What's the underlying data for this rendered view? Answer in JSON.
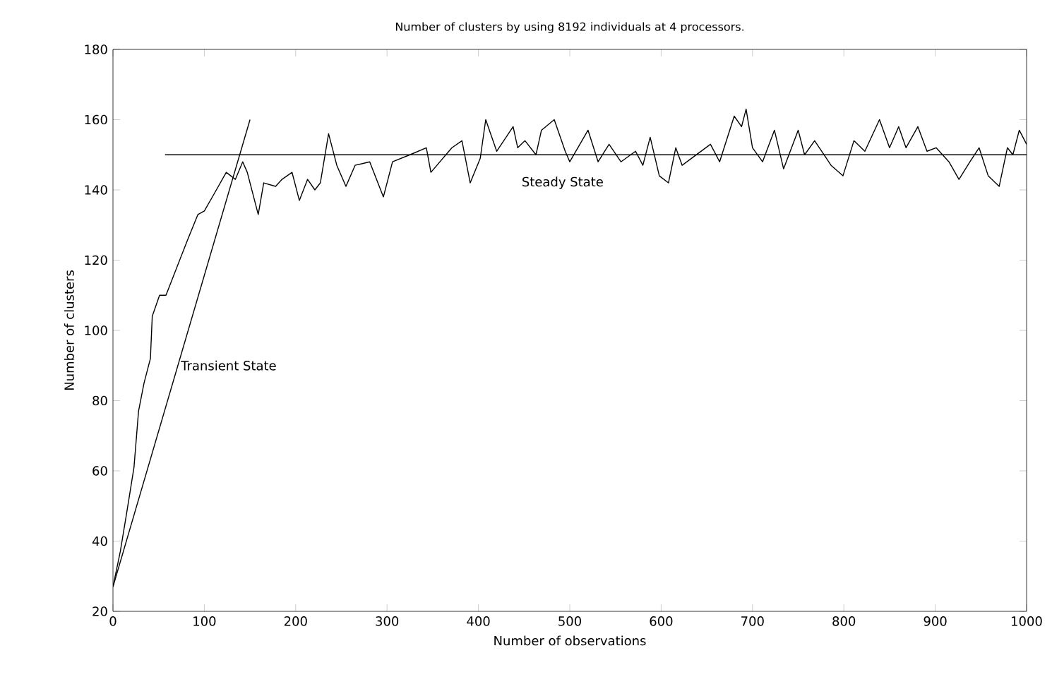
{
  "chart_data": {
    "type": "line",
    "title": "Number of clusters by using 8192 individuals at 4 processors.",
    "xlabel": "Number of observations",
    "ylabel": "Number of clusters",
    "xlim": [
      0,
      1000
    ],
    "ylim": [
      20,
      180
    ],
    "xticks": [
      0,
      100,
      200,
      300,
      400,
      500,
      600,
      700,
      800,
      900,
      1000
    ],
    "yticks": [
      20,
      40,
      60,
      80,
      100,
      120,
      140,
      160,
      180
    ],
    "grid": false,
    "series": [
      {
        "color": "#000000",
        "x": [
          0,
          8,
          15,
          23,
          28,
          34,
          41,
          43,
          51,
          58,
          70,
          82,
          93,
          100,
          111,
          124,
          134,
          142,
          147,
          159,
          165,
          178,
          185,
          196,
          204,
          213,
          221,
          227,
          236,
          245,
          255,
          265,
          281,
          296,
          306,
          325,
          343,
          348,
          371,
          382,
          391,
          402,
          408,
          420,
          438,
          443,
          451,
          463,
          469,
          483,
          495,
          500,
          520,
          531,
          543,
          556,
          572,
          580,
          588,
          598,
          608,
          616,
          623,
          654,
          664,
          680,
          688,
          693,
          700,
          711,
          724,
          734,
          750,
          757,
          768,
          786,
          799,
          811,
          823,
          839,
          850,
          860,
          868,
          881,
          891,
          901,
          915,
          926,
          938,
          948,
          958,
          970,
          979,
          985,
          992,
          1000
        ],
        "values": [
          27,
          37,
          48,
          61,
          77,
          85,
          92,
          104,
          110,
          110,
          118,
          126,
          133,
          134,
          139,
          145,
          143,
          148,
          145,
          133,
          142,
          141,
          143,
          145,
          137,
          143,
          140,
          142,
          156,
          147,
          141,
          147,
          148,
          138,
          148,
          150,
          152,
          145,
          152,
          154,
          142,
          149,
          160,
          151,
          158,
          152,
          154,
          150,
          157,
          160,
          151,
          148,
          157,
          148,
          153,
          148,
          151,
          147,
          155,
          144,
          142,
          152,
          147,
          153,
          148,
          161,
          158,
          163,
          152,
          148,
          157,
          146,
          157,
          150,
          154,
          147,
          144,
          154,
          151,
          160,
          152,
          158,
          152,
          158,
          151,
          152,
          148,
          143,
          148,
          152,
          144,
          141,
          152,
          150,
          157,
          153
        ]
      },
      {
        "type": "line",
        "color": "#000000",
        "x": [
          57,
          1000
        ],
        "values": [
          150,
          150
        ]
      },
      {
        "type": "line",
        "color": "#000000",
        "x": [
          0,
          150
        ],
        "values": [
          27,
          160
        ]
      }
    ],
    "annotations": [
      "Transient State",
      "Steady State"
    ]
  }
}
